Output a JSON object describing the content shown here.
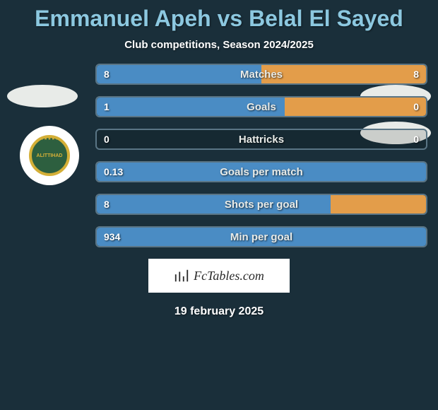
{
  "title": "Emmanuel Apeh vs Belal El Sayed",
  "subtitle": "Club competitions, Season 2024/2025",
  "date": "19 february 2025",
  "footer_brand": "FcTables.com",
  "colors": {
    "background": "#1a2f3a",
    "title": "#8cc8e0",
    "left_bar": "#4a8cc4",
    "right_bar": "#e39d4a",
    "border": "#5a7585",
    "avatar_bg": "#e8ebe8",
    "badge_white": "#ffffff",
    "badge_green": "#2d5f3f",
    "badge_gold": "#d4af37"
  },
  "badge_label": "ALITTIHAD",
  "stats": [
    {
      "label": "Matches",
      "left_val": "8",
      "right_val": "8",
      "left_pct": 50,
      "right_pct": 50
    },
    {
      "label": "Goals",
      "left_val": "1",
      "right_val": "0",
      "left_pct": 57,
      "right_pct": 43
    },
    {
      "label": "Hattricks",
      "left_val": "0",
      "right_val": "0",
      "left_pct": 0,
      "right_pct": 0
    },
    {
      "label": "Goals per match",
      "left_val": "0.13",
      "right_val": "",
      "left_pct": 100,
      "right_pct": 0
    },
    {
      "label": "Shots per goal",
      "left_val": "8",
      "right_val": "",
      "left_pct": 71,
      "right_pct": 29
    },
    {
      "label": "Min per goal",
      "left_val": "934",
      "right_val": "",
      "left_pct": 100,
      "right_pct": 0
    }
  ]
}
